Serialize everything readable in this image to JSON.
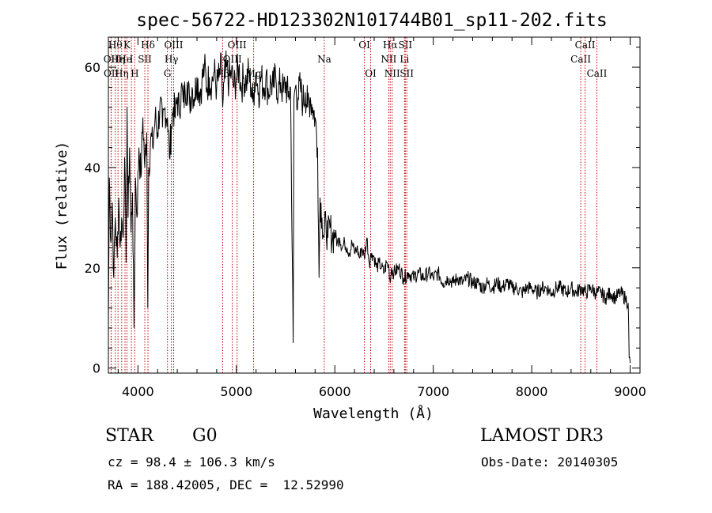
{
  "chart_data": {
    "type": "line",
    "title": "spec-56722-HD123302N101744B01_sp11-202.fits",
    "xlabel": "Wavelength (Å)",
    "ylabel": "Flux (relative)",
    "xlim": [
      3700,
      9100
    ],
    "ylim": [
      -1,
      66
    ],
    "x_ticks": [
      4000,
      5000,
      6000,
      7000,
      8000,
      9000
    ],
    "y_ticks": [
      0,
      20,
      40,
      60
    ],
    "grid": false,
    "series": [
      {
        "color": "#000000",
        "points": [
          [
            3700,
            8
          ],
          [
            3710,
            38
          ],
          [
            3725,
            25
          ],
          [
            3740,
            33
          ],
          [
            3755,
            18
          ],
          [
            3770,
            30
          ],
          [
            3790,
            22
          ],
          [
            3805,
            34
          ],
          [
            3820,
            24
          ],
          [
            3835,
            30
          ],
          [
            3850,
            26
          ],
          [
            3865,
            42
          ],
          [
            3880,
            21
          ],
          [
            3890,
            52
          ],
          [
            3900,
            30
          ],
          [
            3915,
            44
          ],
          [
            3930,
            27
          ],
          [
            3945,
            35
          ],
          [
            3960,
            8
          ],
          [
            3975,
            38
          ],
          [
            3990,
            30
          ],
          [
            4010,
            44
          ],
          [
            4030,
            38
          ],
          [
            4050,
            50
          ],
          [
            4070,
            40
          ],
          [
            4090,
            47
          ],
          [
            4100,
            12
          ],
          [
            4110,
            40
          ],
          [
            4130,
            46
          ],
          [
            4150,
            44
          ],
          [
            4175,
            50
          ],
          [
            4200,
            47
          ],
          [
            4225,
            53
          ],
          [
            4250,
            48
          ],
          [
            4275,
            52
          ],
          [
            4300,
            50
          ],
          [
            4320,
            42
          ],
          [
            4340,
            48
          ],
          [
            4360,
            52
          ],
          [
            4380,
            50
          ],
          [
            4400,
            54
          ],
          [
            4420,
            51
          ],
          [
            4440,
            56
          ],
          [
            4460,
            53
          ],
          [
            4480,
            55
          ],
          [
            4500,
            57
          ],
          [
            4525,
            53
          ],
          [
            4550,
            56
          ],
          [
            4575,
            54
          ],
          [
            4600,
            58
          ],
          [
            4625,
            55
          ],
          [
            4650,
            57
          ],
          [
            4675,
            60
          ],
          [
            4700,
            56
          ],
          [
            4725,
            58
          ],
          [
            4750,
            57
          ],
          [
            4775,
            59
          ],
          [
            4800,
            56
          ],
          [
            4825,
            58
          ],
          [
            4850,
            60
          ],
          [
            4861,
            52
          ],
          [
            4875,
            57
          ],
          [
            4900,
            60
          ],
          [
            4925,
            57
          ],
          [
            4950,
            59
          ],
          [
            4975,
            56
          ],
          [
            5000,
            58
          ],
          [
            5025,
            60
          ],
          [
            5050,
            56
          ],
          [
            5075,
            58
          ],
          [
            5100,
            57
          ],
          [
            5125,
            59
          ],
          [
            5150,
            56
          ],
          [
            5170,
            53
          ],
          [
            5185,
            57
          ],
          [
            5200,
            59
          ],
          [
            5225,
            55
          ],
          [
            5250,
            58
          ],
          [
            5275,
            56
          ],
          [
            5300,
            58
          ],
          [
            5325,
            55
          ],
          [
            5350,
            57
          ],
          [
            5375,
            56
          ],
          [
            5400,
            58
          ],
          [
            5425,
            55
          ],
          [
            5450,
            57
          ],
          [
            5475,
            55
          ],
          [
            5500,
            57
          ],
          [
            5525,
            54
          ],
          [
            5550,
            56
          ],
          [
            5577,
            5
          ],
          [
            5585,
            54
          ],
          [
            5600,
            56
          ],
          [
            5625,
            54
          ],
          [
            5650,
            56
          ],
          [
            5675,
            53
          ],
          [
            5700,
            55
          ],
          [
            5725,
            52
          ],
          [
            5750,
            54
          ],
          [
            5775,
            52
          ],
          [
            5800,
            50
          ],
          [
            5825,
            44
          ],
          [
            5840,
            18
          ],
          [
            5850,
            34
          ],
          [
            5870,
            30
          ],
          [
            5890,
            26
          ],
          [
            5910,
            29
          ],
          [
            5930,
            26
          ],
          [
            5950,
            28
          ],
          [
            5975,
            26
          ],
          [
            6000,
            27
          ],
          [
            6025,
            25
          ],
          [
            6050,
            26
          ],
          [
            6075,
            24
          ],
          [
            6100,
            25
          ],
          [
            6125,
            24
          ],
          [
            6150,
            23
          ],
          [
            6175,
            25
          ],
          [
            6200,
            23
          ],
          [
            6225,
            24
          ],
          [
            6250,
            22
          ],
          [
            6275,
            24
          ],
          [
            6300,
            22
          ],
          [
            6325,
            26
          ],
          [
            6350,
            21
          ],
          [
            6375,
            23
          ],
          [
            6400,
            22
          ],
          [
            6425,
            20
          ],
          [
            6450,
            21
          ],
          [
            6475,
            20
          ],
          [
            6500,
            19
          ],
          [
            6525,
            21
          ],
          [
            6550,
            20
          ],
          [
            6563,
            17
          ],
          [
            6575,
            20
          ],
          [
            6600,
            19
          ],
          [
            6650,
            20
          ],
          [
            6700,
            18
          ],
          [
            6750,
            19
          ],
          [
            6800,
            18
          ],
          [
            6850,
            19
          ],
          [
            6900,
            18
          ],
          [
            6950,
            19
          ],
          [
            7000,
            18
          ],
          [
            7050,
            19
          ],
          [
            7100,
            17
          ],
          [
            7150,
            18
          ],
          [
            7200,
            17
          ],
          [
            7250,
            18
          ],
          [
            7300,
            17
          ],
          [
            7350,
            18
          ],
          [
            7400,
            17
          ],
          [
            7450,
            17
          ],
          [
            7500,
            16
          ],
          [
            7550,
            17
          ],
          [
            7600,
            16
          ],
          [
            7650,
            17
          ],
          [
            7700,
            16
          ],
          [
            7750,
            17
          ],
          [
            7800,
            16
          ],
          [
            7850,
            16
          ],
          [
            7900,
            15
          ],
          [
            7950,
            16
          ],
          [
            8000,
            16
          ],
          [
            8050,
            15
          ],
          [
            8100,
            16
          ],
          [
            8150,
            16
          ],
          [
            8200,
            15
          ],
          [
            8250,
            16
          ],
          [
            8300,
            16
          ],
          [
            8350,
            15
          ],
          [
            8400,
            16
          ],
          [
            8450,
            15
          ],
          [
            8500,
            16
          ],
          [
            8550,
            15
          ],
          [
            8600,
            16
          ],
          [
            8650,
            15
          ],
          [
            8700,
            15
          ],
          [
            8750,
            14
          ],
          [
            8800,
            15
          ],
          [
            8850,
            14
          ],
          [
            8900,
            15
          ],
          [
            8950,
            14
          ],
          [
            8980,
            13
          ],
          [
            8990,
            2
          ],
          [
            9000,
            1
          ]
        ]
      }
    ],
    "line_marks": [
      {
        "x": 3727,
        "row": 1,
        "label": "OII"
      },
      {
        "x": 3729,
        "row": 2,
        "label": "OII"
      },
      {
        "x": 3770,
        "row": 0,
        "label": "Hθ"
      },
      {
        "x": 3798,
        "row": 1,
        "label": "Hη"
      },
      {
        "x": 3835,
        "row": 2,
        "label": "Hη"
      },
      {
        "x": 3869,
        "row": 1,
        "label": "He"
      },
      {
        "x": 3889,
        "row": 0,
        "label": "K"
      },
      {
        "x": 3934,
        "row": 1,
        "label": "I"
      },
      {
        "x": 3968,
        "row": 2,
        "label": "H"
      },
      {
        "x": 4070,
        "row": 1,
        "label": "SII"
      },
      {
        "x": 4102,
        "row": 0,
        "label": "Hδ"
      },
      {
        "x": 4300,
        "row": 2,
        "label": "G"
      },
      {
        "x": 4340,
        "row": 1,
        "label": "Hγ"
      },
      {
        "x": 4363,
        "row": 0,
        "label": "OIII"
      },
      {
        "x": 4861,
        "row": 2,
        "label": "Hβ"
      },
      {
        "x": 4959,
        "row": 1,
        "label": "OIII"
      },
      {
        "x": 5007,
        "row": 0,
        "label": "OIII"
      },
      {
        "x": 5175,
        "row": 2,
        "label": "Mg"
      },
      {
        "x": 5893,
        "row": 1,
        "label": "Na"
      },
      {
        "x": 6300,
        "row": 0,
        "label": "OI"
      },
      {
        "x": 6364,
        "row": 2,
        "label": "OI"
      },
      {
        "x": 6548,
        "row": 1,
        "label": "NII"
      },
      {
        "x": 6563,
        "row": 0,
        "label": "Hα"
      },
      {
        "x": 6583,
        "row": 2,
        "label": "NII"
      },
      {
        "x": 6708,
        "row": 1,
        "label": "Li"
      },
      {
        "x": 6716,
        "row": 0,
        "label": "SII"
      },
      {
        "x": 6731,
        "row": 2,
        "label": "SII"
      },
      {
        "x": 8498,
        "row": 1,
        "label": "CaII"
      },
      {
        "x": 8542,
        "row": 0,
        "label": "CaII"
      },
      {
        "x": 8662,
        "row": 2,
        "label": "CaII"
      }
    ]
  },
  "info": {
    "object_class": "STAR",
    "subclass": "G0",
    "survey": "LAMOST DR3",
    "cz": "cz = 98.4 ± 106.3 km/s",
    "obs_date": "Obs-Date: 20140305",
    "coords": "RA = 188.42005, DEC =  12.52990"
  }
}
